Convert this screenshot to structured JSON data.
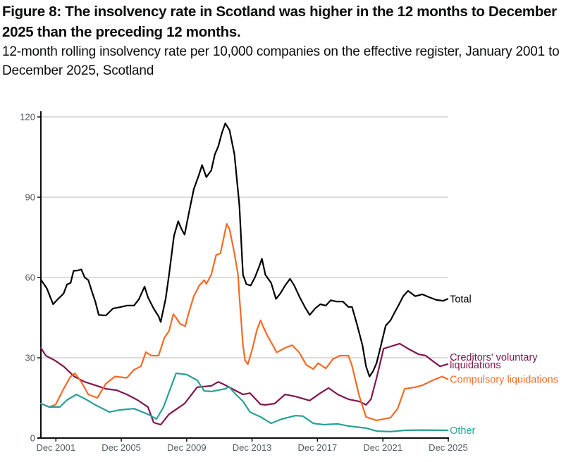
{
  "header": {
    "title": "Figure 8: The insolvency rate in Scotland was higher in the 12 months to December 2025 than the preceding 12 months.",
    "subtitle": "12-month rolling insolvency rate per 10,000 companies on the effective register, January 2001 to December 2025, Scotland"
  },
  "chart_data": {
    "type": "line",
    "title": "Figure 8: The insolvency rate in Scotland was higher in the 12 months to December 2025 than the preceding 12 months.",
    "subtitle": "12-month rolling insolvency rate per 10,000 companies on the effective register, January 2001 to December 2025, Scotland",
    "xlabel": "",
    "ylabel": "",
    "x_unit": "decimal year",
    "xlim": [
      2001.0,
      2025.92
    ],
    "ylim": [
      0,
      120
    ],
    "y_ticks": [
      0,
      30,
      60,
      90,
      120
    ],
    "y_tick_labels": [
      "0",
      "30",
      "60",
      "90",
      "120"
    ],
    "x_ticks": [
      2001.917,
      2005.917,
      2009.917,
      2013.917,
      2017.917,
      2021.917,
      2025.917
    ],
    "x_tick_labels": [
      "Dec 2001",
      "Dec 2005",
      "Dec 2009",
      "Dec 2013",
      "Dec 2017",
      "Dec 2021",
      "Dec 2025"
    ],
    "grid": "horizontal",
    "legend": "direct labels at right end of lines",
    "series": [
      {
        "name": "Total",
        "label_lines": [
          "Total"
        ],
        "color": "#000000",
        "points": [
          [
            2001.0,
            59.2
          ],
          [
            2001.36,
            56
          ],
          [
            2001.75,
            50
          ],
          [
            2002.05,
            52
          ],
          [
            2002.39,
            54
          ],
          [
            2002.6,
            57.4
          ],
          [
            2002.82,
            58
          ],
          [
            2003.0,
            62.5
          ],
          [
            2003.25,
            62.6
          ],
          [
            2003.47,
            63
          ],
          [
            2003.68,
            60
          ],
          [
            2003.9,
            59
          ],
          [
            2004.11,
            55
          ],
          [
            2004.33,
            51
          ],
          [
            2004.54,
            46
          ],
          [
            2004.97,
            45.8
          ],
          [
            2005.4,
            48.4
          ],
          [
            2005.83,
            48.9
          ],
          [
            2006.26,
            49.5
          ],
          [
            2006.69,
            49.5
          ],
          [
            2006.99,
            51.8
          ],
          [
            2007.34,
            56.6
          ],
          [
            2007.55,
            52.6
          ],
          [
            2007.9,
            48.4
          ],
          [
            2008.2,
            45.5
          ],
          [
            2008.33,
            43.4
          ],
          [
            2008.63,
            52
          ],
          [
            2008.84,
            61
          ],
          [
            2009.14,
            75.5
          ],
          [
            2009.4,
            81
          ],
          [
            2009.61,
            78
          ],
          [
            2009.79,
            76
          ],
          [
            2010.05,
            84
          ],
          [
            2010.35,
            93
          ],
          [
            2010.65,
            98
          ],
          [
            2010.86,
            102
          ],
          [
            2011.12,
            97.5
          ],
          [
            2011.42,
            100
          ],
          [
            2011.64,
            106
          ],
          [
            2011.85,
            109
          ],
          [
            2012.07,
            114
          ],
          [
            2012.28,
            117.6
          ],
          [
            2012.54,
            115
          ],
          [
            2012.84,
            106
          ],
          [
            2013.14,
            87
          ],
          [
            2013.36,
            61
          ],
          [
            2013.57,
            57.5
          ],
          [
            2013.83,
            57
          ],
          [
            2014.09,
            60
          ],
          [
            2014.35,
            64
          ],
          [
            2014.52,
            67
          ],
          [
            2014.73,
            61
          ],
          [
            2015.08,
            58
          ],
          [
            2015.38,
            52
          ],
          [
            2015.64,
            54
          ],
          [
            2015.94,
            57
          ],
          [
            2016.24,
            59.5
          ],
          [
            2016.5,
            57
          ],
          [
            2016.8,
            53
          ],
          [
            2017.14,
            49
          ],
          [
            2017.44,
            46
          ],
          [
            2017.79,
            48.5
          ],
          [
            2018.09,
            50
          ],
          [
            2018.43,
            49.5
          ],
          [
            2018.73,
            51.5
          ],
          [
            2019.08,
            51
          ],
          [
            2019.47,
            51
          ],
          [
            2019.81,
            49
          ],
          [
            2020.03,
            49
          ],
          [
            2020.33,
            42.6
          ],
          [
            2020.67,
            34.7
          ],
          [
            2020.89,
            26.8
          ],
          [
            2021.1,
            23
          ],
          [
            2021.32,
            25
          ],
          [
            2021.53,
            28
          ],
          [
            2021.75,
            33.4
          ],
          [
            2022.09,
            42
          ],
          [
            2022.39,
            44
          ],
          [
            2022.61,
            46.6
          ],
          [
            2022.91,
            50
          ],
          [
            2023.16,
            53
          ],
          [
            2023.46,
            55
          ],
          [
            2023.68,
            54
          ],
          [
            2023.9,
            53
          ],
          [
            2024.33,
            53.7
          ],
          [
            2024.76,
            52.6
          ],
          [
            2025.19,
            51.6
          ],
          [
            2025.62,
            51.3
          ],
          [
            2025.88,
            52
          ]
        ]
      },
      {
        "name": "Creditors' voluntary liquidations",
        "label_lines": [
          "Creditors' voluntary",
          "liquidations"
        ],
        "color": "#801650",
        "points": [
          [
            2001.0,
            33.7
          ],
          [
            2001.3,
            30.8
          ],
          [
            2001.86,
            29
          ],
          [
            2002.39,
            26.8
          ],
          [
            2003.04,
            23
          ],
          [
            2003.68,
            21
          ],
          [
            2004.33,
            19.7
          ],
          [
            2004.97,
            18.4
          ],
          [
            2005.62,
            17.9
          ],
          [
            2006.26,
            16.3
          ],
          [
            2006.91,
            14.2
          ],
          [
            2007.55,
            11.6
          ],
          [
            2007.9,
            5.8
          ],
          [
            2008.33,
            5
          ],
          [
            2008.84,
            8.9
          ],
          [
            2009.79,
            12.9
          ],
          [
            2010.56,
            19
          ],
          [
            2011.42,
            19.5
          ],
          [
            2011.85,
            21
          ],
          [
            2012.28,
            19.8
          ],
          [
            2012.71,
            18.4
          ],
          [
            2013.36,
            16.3
          ],
          [
            2013.79,
            16.8
          ],
          [
            2014.44,
            12.6
          ],
          [
            2014.73,
            12.4
          ],
          [
            2015.3,
            12.9
          ],
          [
            2015.94,
            16.3
          ],
          [
            2016.59,
            15.5
          ],
          [
            2017.44,
            14
          ],
          [
            2018.09,
            16.8
          ],
          [
            2018.6,
            18.7
          ],
          [
            2019.16,
            16.3
          ],
          [
            2019.81,
            14.5
          ],
          [
            2020.46,
            13.7
          ],
          [
            2020.89,
            12.4
          ],
          [
            2021.19,
            14.5
          ],
          [
            2021.53,
            22.4
          ],
          [
            2021.96,
            33.4
          ],
          [
            2022.39,
            34.2
          ],
          [
            2022.95,
            35.3
          ],
          [
            2023.46,
            33.4
          ],
          [
            2024.11,
            31.3
          ],
          [
            2024.54,
            30.8
          ],
          [
            2024.98,
            28.7
          ],
          [
            2025.41,
            26.8
          ],
          [
            2025.88,
            27.6
          ]
        ]
      },
      {
        "name": "Compulsory liquidations",
        "label_lines": [
          "Compulsory liquidations"
        ],
        "color": "#f46a25",
        "points": [
          [
            2001.0,
            12.9
          ],
          [
            2001.5,
            11.6
          ],
          [
            2001.9,
            12.5
          ],
          [
            2002.39,
            18.4
          ],
          [
            2002.82,
            23
          ],
          [
            2003.08,
            24.2
          ],
          [
            2003.47,
            21
          ],
          [
            2003.9,
            16.3
          ],
          [
            2004.45,
            15
          ],
          [
            2004.97,
            20.3
          ],
          [
            2005.53,
            23
          ],
          [
            2006.26,
            22.5
          ],
          [
            2006.69,
            25.5
          ],
          [
            2007.12,
            26.8
          ],
          [
            2007.42,
            32.1
          ],
          [
            2007.77,
            30.8
          ],
          [
            2008.2,
            30.8
          ],
          [
            2008.55,
            37.4
          ],
          [
            2008.84,
            40
          ],
          [
            2009.1,
            46.3
          ],
          [
            2009.27,
            45
          ],
          [
            2009.53,
            42.6
          ],
          [
            2009.83,
            41.8
          ],
          [
            2010.0,
            45.8
          ],
          [
            2010.35,
            53
          ],
          [
            2010.69,
            57
          ],
          [
            2010.99,
            59
          ],
          [
            2011.12,
            57.6
          ],
          [
            2011.42,
            61
          ],
          [
            2011.72,
            68.4
          ],
          [
            2011.98,
            69
          ],
          [
            2012.28,
            77.6
          ],
          [
            2012.37,
            80
          ],
          [
            2012.54,
            78
          ],
          [
            2012.84,
            69
          ],
          [
            2013.06,
            61
          ],
          [
            2013.14,
            53
          ],
          [
            2013.36,
            34.7
          ],
          [
            2013.49,
            29
          ],
          [
            2013.66,
            27.6
          ],
          [
            2013.92,
            33
          ],
          [
            2014.22,
            40.5
          ],
          [
            2014.44,
            44
          ],
          [
            2014.57,
            42
          ],
          [
            2014.88,
            38
          ],
          [
            2015.43,
            32
          ],
          [
            2015.94,
            33.7
          ],
          [
            2016.37,
            34.7
          ],
          [
            2016.8,
            32
          ],
          [
            2017.23,
            27.4
          ],
          [
            2017.66,
            25.8
          ],
          [
            2017.96,
            28
          ],
          [
            2018.43,
            26
          ],
          [
            2018.86,
            29.5
          ],
          [
            2019.29,
            30.8
          ],
          [
            2019.81,
            30.8
          ],
          [
            2020.03,
            27
          ],
          [
            2020.46,
            16
          ],
          [
            2020.89,
            7.9
          ],
          [
            2021.53,
            6.6
          ],
          [
            2022.39,
            7.6
          ],
          [
            2022.82,
            11
          ],
          [
            2023.25,
            18.4
          ],
          [
            2023.9,
            19
          ],
          [
            2024.33,
            19.7
          ],
          [
            2024.98,
            21.6
          ],
          [
            2025.54,
            23
          ],
          [
            2025.88,
            22
          ]
        ]
      },
      {
        "name": "Other",
        "label_lines": [
          "Other"
        ],
        "color": "#28a197",
        "points": [
          [
            2001.0,
            12.9
          ],
          [
            2001.5,
            11.6
          ],
          [
            2002.15,
            11.6
          ],
          [
            2002.6,
            14.2
          ],
          [
            2003.17,
            16.3
          ],
          [
            2003.68,
            14.7
          ],
          [
            2004.33,
            12.4
          ],
          [
            2005.19,
            9.7
          ],
          [
            2005.83,
            10.5
          ],
          [
            2006.69,
            11
          ],
          [
            2007.55,
            8.9
          ],
          [
            2008.07,
            7.1
          ],
          [
            2008.5,
            11.6
          ],
          [
            2009.27,
            24.2
          ],
          [
            2009.92,
            23.7
          ],
          [
            2010.56,
            21.6
          ],
          [
            2010.99,
            17.6
          ],
          [
            2011.42,
            17.4
          ],
          [
            2012.28,
            18.4
          ],
          [
            2012.5,
            19.2
          ],
          [
            2012.93,
            16.3
          ],
          [
            2013.36,
            13.7
          ],
          [
            2013.79,
            9.7
          ],
          [
            2014.44,
            7.9
          ],
          [
            2015.08,
            5.5
          ],
          [
            2015.73,
            7.1
          ],
          [
            2016.59,
            8.4
          ],
          [
            2017.02,
            8.2
          ],
          [
            2017.66,
            5.5
          ],
          [
            2018.3,
            5
          ],
          [
            2019.16,
            5.3
          ],
          [
            2019.81,
            4.5
          ],
          [
            2020.89,
            3.7
          ],
          [
            2021.53,
            2.6
          ],
          [
            2022.39,
            2.4
          ],
          [
            2023.25,
            2.9
          ],
          [
            2024.33,
            3
          ],
          [
            2025.88,
            2.9
          ]
        ]
      }
    ]
  }
}
